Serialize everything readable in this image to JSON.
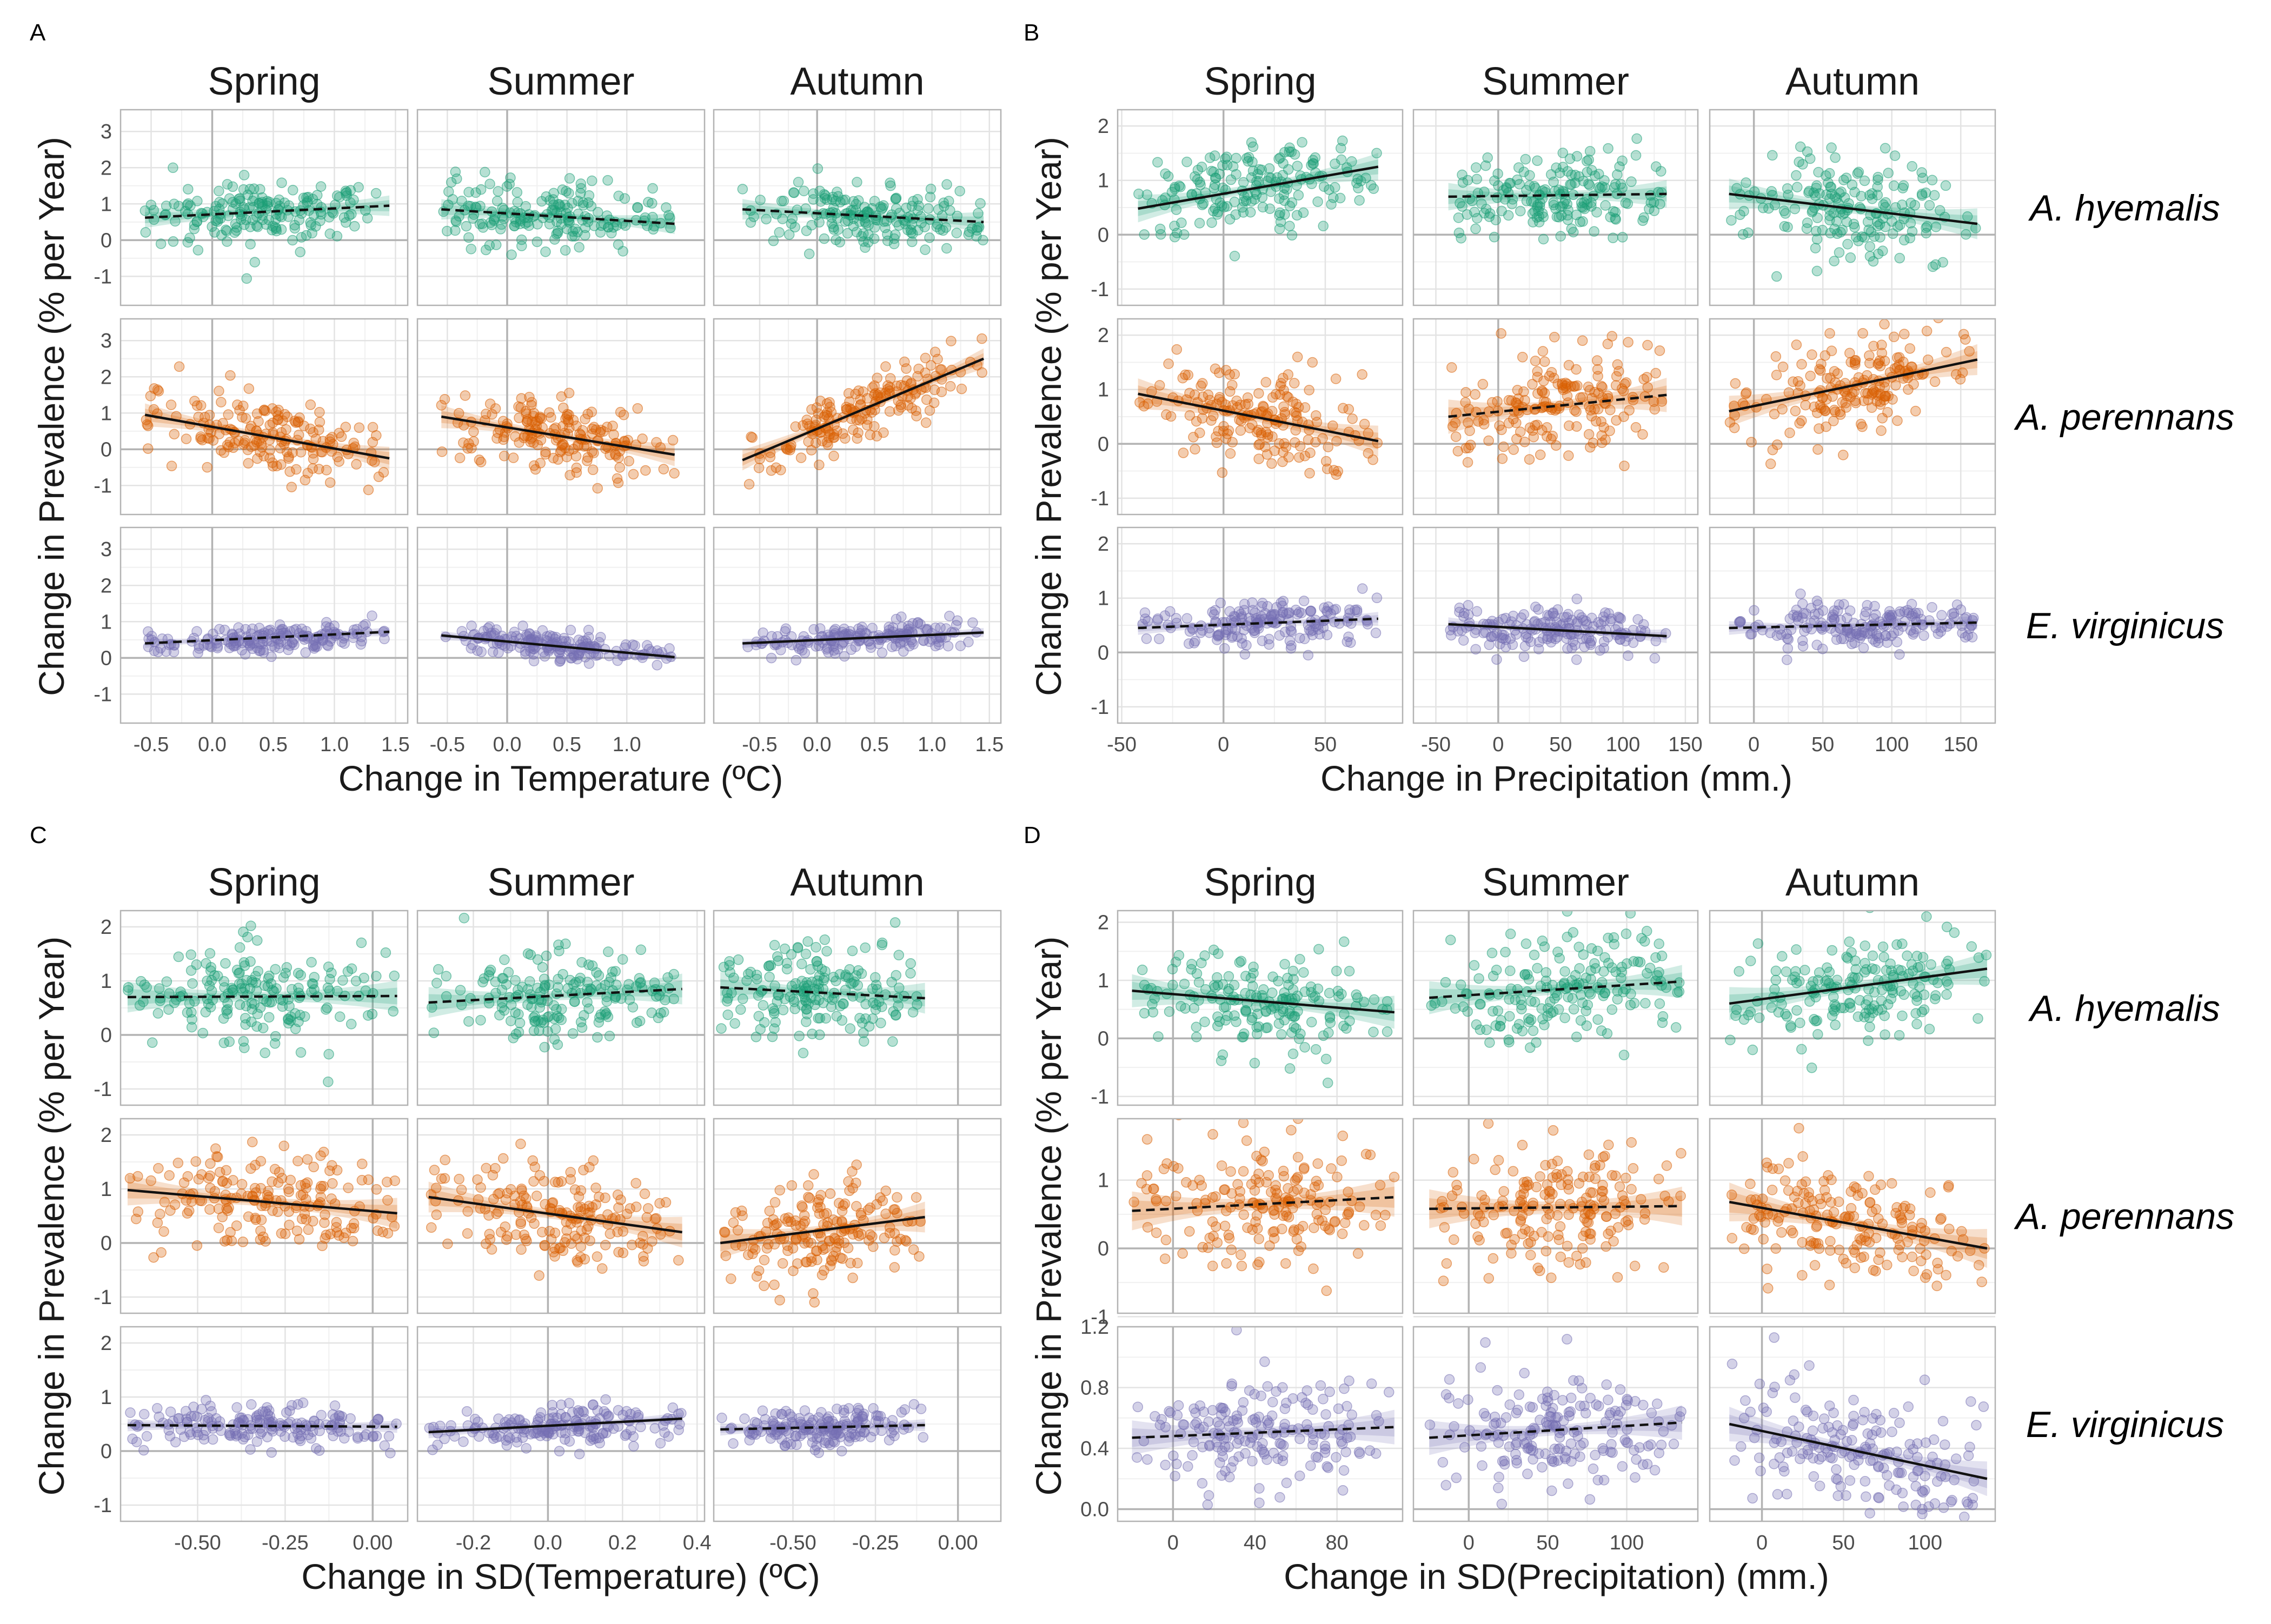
{
  "species": [
    "A. hyemalis",
    "A. perennans",
    "E. virginicus"
  ],
  "seasons": [
    "Spring",
    "Summer",
    "Autumn"
  ],
  "species_colors": [
    "#1b9e77",
    "#d95f02",
    "#7570b3"
  ],
  "chart_data": [
    {
      "panel": "A",
      "type": "scatter",
      "xlabel": "Change in Temperature (ºC)",
      "ylabel": "Change in Prevalence (% per Year)",
      "ylim": [
        -1.8,
        3.6
      ],
      "yticks": [
        -1,
        0,
        1,
        2,
        3
      ],
      "vline_at": 0,
      "columns": [
        {
          "season": "Spring",
          "xlim": [
            -0.75,
            1.6
          ],
          "xticks": [
            -0.5,
            0.0,
            0.5,
            1.0,
            1.5
          ],
          "xtick_labels": [
            "-0.5",
            "0.0",
            "0.5",
            "1.0",
            "1.5"
          ],
          "data_x": [
            -0.55,
            1.45
          ]
        },
        {
          "season": "Summer",
          "xlim": [
            -0.75,
            1.65
          ],
          "xticks": [
            -0.5,
            0.0,
            0.5,
            1.0
          ],
          "xtick_labels": [
            "-0.5",
            "0.0",
            "0.5",
            "1.0"
          ],
          "data_x": [
            -0.55,
            1.4
          ]
        },
        {
          "season": "Autumn",
          "xlim": [
            -0.9,
            1.6
          ],
          "xticks": [
            -0.5,
            0.0,
            0.5,
            1.0,
            1.5
          ],
          "xtick_labels": [
            "-0.5",
            "0.0",
            "0.5",
            "1.0",
            "1.5"
          ],
          "data_x": [
            -0.65,
            1.45
          ]
        }
      ],
      "series": [
        [
          {
            "line": [
              0.62,
              0.95
            ],
            "style": "dashed",
            "spread": 0.45
          },
          {
            "line": [
              0.85,
              0.45
            ],
            "style": "dashed",
            "spread": 0.45
          },
          {
            "line": [
              0.85,
              0.5
            ],
            "style": "dashed",
            "spread": 0.45
          }
        ],
        [
          {
            "line": [
              0.95,
              -0.25
            ],
            "style": "solid",
            "spread": 0.5
          },
          {
            "line": [
              0.9,
              -0.15
            ],
            "style": "solid",
            "spread": 0.5
          },
          {
            "line": [
              -0.3,
              2.5
            ],
            "style": "solid",
            "spread": 0.45
          }
        ],
        [
          {
            "line": [
              0.4,
              0.72
            ],
            "style": "dashed",
            "spread": 0.2
          },
          {
            "line": [
              0.62,
              0.02
            ],
            "style": "solid",
            "spread": 0.2
          },
          {
            "line": [
              0.4,
              0.7
            ],
            "style": "solid",
            "spread": 0.2
          }
        ]
      ]
    },
    {
      "panel": "B",
      "type": "scatter",
      "xlabel": "Change in Precipitation (mm.)",
      "ylabel": "Change in Prevalence (% per Year)",
      "ylim": [
        -1.3,
        2.3
      ],
      "yticks": [
        -1,
        0,
        1,
        2
      ],
      "vline_at": 0,
      "columns": [
        {
          "season": "Spring",
          "xlim": [
            -52,
            88
          ],
          "xticks": [
            -50,
            0,
            50
          ],
          "xtick_labels": [
            "-50",
            "0",
            "50"
          ],
          "data_x": [
            -42,
            76
          ]
        },
        {
          "season": "Summer",
          "xlim": [
            -68,
            160
          ],
          "xticks": [
            -50,
            0,
            50,
            100,
            150
          ],
          "xtick_labels": [
            "-50",
            "0",
            "50",
            "100",
            "150"
          ],
          "data_x": [
            -40,
            135
          ]
        },
        {
          "season": "Autumn",
          "xlim": [
            -32,
            175
          ],
          "xticks": [
            0,
            50,
            100,
            150
          ],
          "xtick_labels": [
            "0",
            "50",
            "100",
            "150"
          ],
          "data_x": [
            -18,
            162
          ]
        }
      ],
      "series": [
        [
          {
            "line": [
              0.48,
              1.25
            ],
            "style": "solid",
            "spread": 0.4
          },
          {
            "line": [
              0.7,
              0.75
            ],
            "style": "dashed",
            "spread": 0.4
          },
          {
            "line": [
              0.75,
              0.2
            ],
            "style": "solid",
            "spread": 0.45
          }
        ],
        [
          {
            "line": [
              0.92,
              0.05
            ],
            "style": "solid",
            "spread": 0.45
          },
          {
            "line": [
              0.5,
              0.9
            ],
            "style": "dashed",
            "spread": 0.5
          },
          {
            "line": [
              0.6,
              1.55
            ],
            "style": "solid",
            "spread": 0.45
          }
        ],
        [
          {
            "line": [
              0.45,
              0.62
            ],
            "style": "dashed",
            "spread": 0.2
          },
          {
            "line": [
              0.52,
              0.3
            ],
            "style": "solid",
            "spread": 0.2
          },
          {
            "line": [
              0.45,
              0.55
            ],
            "style": "dashed",
            "spread": 0.2
          }
        ]
      ]
    },
    {
      "panel": "C",
      "type": "scatter",
      "xlabel": "Change in SD(Temperature) (ºC)",
      "ylabel": "Change in Prevalence (% per Year)",
      "ylim": [
        -1.3,
        2.3
      ],
      "yticks": [
        -1,
        0,
        1,
        2
      ],
      "vline_at": 0,
      "columns": [
        {
          "season": "Spring",
          "xlim": [
            -0.72,
            0.1
          ],
          "xticks": [
            -0.5,
            -0.25,
            0.0
          ],
          "xtick_labels": [
            "-0.50",
            "-0.25",
            "0.00"
          ],
          "data_x": [
            -0.7,
            0.07
          ]
        },
        {
          "season": "Summer",
          "xlim": [
            -0.35,
            0.42
          ],
          "xticks": [
            -0.2,
            0.0,
            0.2,
            0.4
          ],
          "xtick_labels": [
            "-0.2",
            "0.0",
            "0.2",
            "0.4"
          ],
          "data_x": [
            -0.32,
            0.36
          ]
        },
        {
          "season": "Autumn",
          "xlim": [
            -0.74,
            0.13
          ],
          "xticks": [
            -0.5,
            -0.25,
            0.0
          ],
          "xtick_labels": [
            "-0.50",
            "-0.25",
            "0.00"
          ],
          "data_x": [
            -0.72,
            -0.1
          ]
        }
      ],
      "series": [
        [
          {
            "line": [
              0.7,
              0.72
            ],
            "style": "dashed",
            "spread": 0.45
          },
          {
            "line": [
              0.6,
              0.85
            ],
            "style": "dashed",
            "spread": 0.45
          },
          {
            "line": [
              0.88,
              0.68
            ],
            "style": "dashed",
            "spread": 0.45
          }
        ],
        [
          {
            "line": [
              0.98,
              0.55
            ],
            "style": "solid",
            "spread": 0.45
          },
          {
            "line": [
              0.85,
              0.2
            ],
            "style": "solid",
            "spread": 0.45
          },
          {
            "line": [
              0.0,
              0.48
            ],
            "style": "solid",
            "spread": 0.45
          }
        ],
        [
          {
            "line": [
              0.48,
              0.45
            ],
            "style": "dashed",
            "spread": 0.18
          },
          {
            "line": [
              0.35,
              0.6
            ],
            "style": "solid",
            "spread": 0.18
          },
          {
            "line": [
              0.4,
              0.48
            ],
            "style": "dashed",
            "spread": 0.18
          }
        ]
      ]
    },
    {
      "panel": "D",
      "type": "scatter",
      "xlabel": "Change in SD(Precipitation) (mm.)",
      "ylabel": "Change in Prevalence (% per Year)",
      "ylim_rows": [
        [
          -1.15,
          2.2
        ],
        [
          -0.95,
          1.9
        ],
        [
          -0.08,
          1.2
        ]
      ],
      "yticks_rows": [
        [
          -1,
          0,
          1,
          2
        ],
        [
          -1,
          0,
          1
        ],
        [
          0.0,
          0.4,
          0.8,
          1.2
        ]
      ],
      "ytick_labels_rows": [
        [
          "-1",
          "0",
          "1",
          "2"
        ],
        [
          "-1",
          "0",
          "1"
        ],
        [
          "0.0",
          "0.4",
          "0.8",
          "1.2"
        ]
      ],
      "vline_at": 0,
      "columns": [
        {
          "season": "Spring",
          "xlim": [
            -27,
            112
          ],
          "xticks": [
            0,
            40,
            80
          ],
          "xtick_labels": [
            "0",
            "40",
            "80"
          ],
          "data_x": [
            -20,
            108
          ]
        },
        {
          "season": "Summer",
          "xlim": [
            -35,
            145
          ],
          "xticks": [
            0,
            50,
            100
          ],
          "xtick_labels": [
            "0",
            "50",
            "100"
          ],
          "data_x": [
            -25,
            135
          ]
        },
        {
          "season": "Autumn",
          "xlim": [
            -32,
            143
          ],
          "xticks": [
            0,
            50,
            100
          ],
          "xtick_labels": [
            "0",
            "50",
            "100"
          ],
          "data_x": [
            -20,
            138
          ]
        }
      ],
      "series": [
        [
          {
            "line": [
              0.82,
              0.45
            ],
            "style": "solid",
            "spread": 0.45
          },
          {
            "line": [
              0.7,
              0.98
            ],
            "style": "dashed",
            "spread": 0.45
          },
          {
            "line": [
              0.6,
              1.2
            ],
            "style": "solid",
            "spread": 0.45
          }
        ],
        [
          {
            "line": [
              0.55,
              0.75
            ],
            "style": "dashed",
            "spread": 0.45
          },
          {
            "line": [
              0.58,
              0.62
            ],
            "style": "dashed",
            "spread": 0.45
          },
          {
            "line": [
              0.68,
              0.0
            ],
            "style": "solid",
            "spread": 0.45
          }
        ],
        [
          {
            "line": [
              0.47,
              0.54
            ],
            "style": "dashed",
            "spread": 0.18
          },
          {
            "line": [
              0.47,
              0.57
            ],
            "style": "dashed",
            "spread": 0.18
          },
          {
            "line": [
              0.56,
              0.2
            ],
            "style": "solid",
            "spread": 0.18
          }
        ]
      ]
    }
  ]
}
